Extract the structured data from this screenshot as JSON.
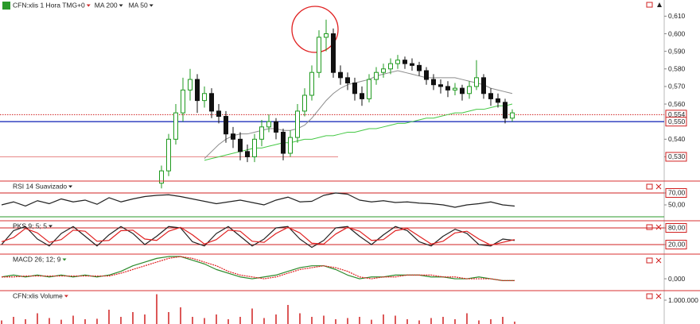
{
  "chart_data": [
    {
      "type": "candlestick",
      "title": "CFN:xlis 1 Hora TMG+0",
      "title_color": "#d02828",
      "open": [
        0.515,
        0.522,
        0.54,
        0.555,
        0.568,
        0.574,
        0.562,
        0.566,
        0.556,
        0.553,
        0.543,
        0.54,
        0.533,
        0.53,
        0.54,
        0.547,
        0.55,
        0.544,
        0.532,
        0.541,
        0.556,
        0.565,
        0.578,
        0.598,
        0.6,
        0.578,
        0.575,
        0.572,
        0.566,
        0.563,
        0.574,
        0.578,
        0.58,
        0.583,
        0.585,
        0.583,
        0.582,
        0.579,
        0.574,
        0.571,
        0.57,
        0.568,
        0.569,
        0.566,
        0.57,
        0.575,
        0.566,
        0.563,
        0.561,
        0.552
      ],
      "high": [
        0.525,
        0.543,
        0.56,
        0.575,
        0.58,
        0.577,
        0.57,
        0.569,
        0.56,
        0.556,
        0.547,
        0.544,
        0.537,
        0.543,
        0.551,
        0.554,
        0.552,
        0.546,
        0.545,
        0.56,
        0.569,
        0.582,
        0.602,
        0.608,
        0.603,
        0.582,
        0.578,
        0.575,
        0.57,
        0.577,
        0.581,
        0.583,
        0.586,
        0.588,
        0.587,
        0.586,
        0.584,
        0.581,
        0.577,
        0.574,
        0.573,
        0.572,
        0.571,
        0.573,
        0.585,
        0.577,
        0.569,
        0.566,
        0.563,
        0.557
      ],
      "low": [
        0.512,
        0.519,
        0.537,
        0.55,
        0.562,
        0.555,
        0.558,
        0.552,
        0.549,
        0.538,
        0.535,
        0.528,
        0.527,
        0.527,
        0.536,
        0.544,
        0.54,
        0.528,
        0.53,
        0.538,
        0.553,
        0.562,
        0.575,
        0.59,
        0.575,
        0.571,
        0.568,
        0.562,
        0.559,
        0.561,
        0.571,
        0.575,
        0.577,
        0.58,
        0.58,
        0.579,
        0.576,
        0.571,
        0.568,
        0.566,
        0.564,
        0.565,
        0.562,
        0.563,
        0.568,
        0.563,
        0.559,
        0.558,
        0.549,
        0.55
      ],
      "close": [
        0.522,
        0.54,
        0.555,
        0.568,
        0.574,
        0.562,
        0.566,
        0.556,
        0.553,
        0.543,
        0.54,
        0.533,
        0.53,
        0.54,
        0.547,
        0.55,
        0.544,
        0.532,
        0.541,
        0.556,
        0.565,
        0.578,
        0.598,
        0.6,
        0.578,
        0.575,
        0.572,
        0.566,
        0.563,
        0.574,
        0.578,
        0.58,
        0.583,
        0.585,
        0.583,
        0.582,
        0.579,
        0.574,
        0.571,
        0.57,
        0.568,
        0.569,
        0.566,
        0.57,
        0.575,
        0.566,
        0.563,
        0.561,
        0.552,
        0.555
      ],
      "up_color": "#1f9a1f",
      "down_color": "#111111",
      "series": [
        {
          "name": "MA 200",
          "color": "#45c845",
          "values": [
            null,
            null,
            null,
            null,
            null,
            null,
            0.528,
            0.529,
            0.53,
            0.531,
            0.532,
            0.533,
            0.534,
            0.535,
            0.535,
            0.536,
            0.537,
            0.538,
            0.538,
            0.539,
            0.54,
            0.54,
            0.541,
            0.542,
            0.542,
            0.543,
            0.544,
            0.544,
            0.545,
            0.546,
            0.546,
            0.547,
            0.548,
            0.549,
            0.549,
            0.55,
            0.551,
            0.552,
            0.552,
            0.553,
            0.554,
            0.555,
            0.555,
            0.556,
            0.557,
            0.557,
            0.558,
            0.559,
            0.559,
            0.56
          ]
        },
        {
          "name": "MA 50",
          "color": "#8c8c8c",
          "values": [
            null,
            null,
            null,
            null,
            null,
            null,
            0.529,
            0.533,
            0.537,
            0.54,
            0.542,
            0.543,
            0.543,
            0.544,
            0.545,
            0.546,
            0.546,
            0.545,
            0.545,
            0.546,
            0.548,
            0.552,
            0.557,
            0.562,
            0.566,
            0.569,
            0.571,
            0.572,
            0.573,
            0.574,
            0.576,
            0.577,
            0.578,
            0.579,
            0.578,
            0.577,
            0.576,
            0.575,
            0.575,
            0.575,
            0.575,
            0.575,
            0.574,
            0.573,
            0.572,
            0.571,
            0.569,
            0.568,
            0.567,
            0.566
          ]
        }
      ],
      "ylim": [
        0.5162,
        0.6192
      ],
      "yticks": [
        {
          "value": 0.61,
          "label": "0,610"
        },
        {
          "value": 0.6,
          "label": "0,600"
        },
        {
          "value": 0.59,
          "label": "0,590"
        },
        {
          "value": 0.58,
          "label": "0,580"
        },
        {
          "value": 0.57,
          "label": "0,570"
        },
        {
          "value": 0.56,
          "label": "0,560"
        },
        {
          "value": 0.54,
          "label": "0,540"
        },
        {
          "value": 0.53,
          "label": "0,530"
        }
      ],
      "levels": [
        {
          "value": 0.554,
          "label": "0,554",
          "color": "#d02020",
          "style": "dotted"
        },
        {
          "value": 0.55,
          "label": "0,550",
          "color": "#2233bb",
          "style": "solid"
        },
        {
          "value": 0.53,
          "color": "#e88888",
          "style": "solid"
        }
      ]
    },
    {
      "type": "line",
      "title": "RSI 14 Suavizado",
      "title_color": "#222222",
      "series": [
        {
          "color": "#222222",
          "values": [
            50,
            55,
            48,
            57,
            52,
            60,
            55,
            58,
            51,
            62,
            55,
            60,
            64,
            66,
            67,
            64,
            60,
            56,
            52,
            55,
            58,
            54,
            50,
            58,
            63,
            55,
            56,
            66,
            70,
            68,
            58,
            55,
            57,
            54,
            55,
            53,
            52,
            50,
            46,
            50,
            52,
            55,
            50,
            48
          ]
        }
      ],
      "ylim": [
        23.3,
        90
      ],
      "yticks": [
        {
          "value": 70,
          "label": "70,00"
        },
        {
          "value": 50,
          "label": "50,00"
        }
      ],
      "levels": [
        {
          "value": 70,
          "color": "#d02020"
        },
        {
          "value": 30,
          "color": "#2a9a2a"
        }
      ]
    },
    {
      "type": "line",
      "title": "PKS 9; 5; 5",
      "title_color": "#222222",
      "series": [
        {
          "color": "#222222",
          "values": [
            20,
            70,
            85,
            40,
            15,
            60,
            85,
            50,
            15,
            55,
            85,
            60,
            20,
            50,
            85,
            80,
            30,
            15,
            60,
            85,
            50,
            15,
            40,
            80,
            85,
            40,
            10,
            35,
            80,
            85,
            50,
            20,
            55,
            85,
            70,
            30,
            15,
            50,
            75,
            60,
            20,
            15,
            40,
            35
          ]
        },
        {
          "color": "#e02020",
          "values": [
            30,
            45,
            78,
            62,
            28,
            38,
            72,
            68,
            32,
            35,
            70,
            72,
            40,
            35,
            68,
            82,
            55,
            22,
            38,
            72,
            68,
            32,
            28,
            60,
            82,
            62,
            25,
            22,
            58,
            82,
            68,
            35,
            38,
            70,
            78,
            50,
            22,
            32,
            62,
            68,
            40,
            18,
            28,
            38
          ]
        }
      ],
      "ylim": [
        -14.3,
        105.7
      ],
      "yticks": [
        {
          "value": 80,
          "label": "80,00"
        },
        {
          "value": 20,
          "label": "20,00"
        }
      ],
      "levels": [
        {
          "value": 80,
          "color": "#d02020"
        },
        {
          "value": 20,
          "color": "#d02020"
        }
      ]
    },
    {
      "type": "line",
      "title": "MACD 26; 12; 9",
      "title_color": "#2a8a2a",
      "series": [
        {
          "color": "#2a8a2a",
          "values": [
            0.001,
            0.002,
            0.001,
            0.002,
            0.001,
            0.002,
            0.001,
            0.002,
            0.001,
            0.002,
            0.004,
            0.007,
            0.009,
            0.011,
            0.012,
            0.012,
            0.01,
            0.008,
            0.005,
            0.003,
            0.001,
            0.0,
            0.001,
            0.002,
            0.004,
            0.006,
            0.007,
            0.007,
            0.005,
            0.002,
            0.0,
            0.001,
            0.001,
            0.002,
            0.002,
            0.002,
            0.001,
            0.001,
            0.0,
            0.0,
            0.001,
            0.0,
            -0.001,
            -0.001
          ]
        },
        {
          "color": "#e02020",
          "dashed": true,
          "values": [
            0.001,
            0.001,
            0.0015,
            0.0015,
            0.0015,
            0.0015,
            0.0015,
            0.0015,
            0.0015,
            0.0015,
            0.003,
            0.005,
            0.007,
            0.009,
            0.011,
            0.012,
            0.011,
            0.009,
            0.007,
            0.004,
            0.002,
            0.001,
            0.0,
            0.001,
            0.003,
            0.005,
            0.006,
            0.007,
            0.006,
            0.004,
            0.001,
            0.0,
            0.001,
            0.001,
            0.002,
            0.002,
            0.002,
            0.001,
            0.001,
            0.0,
            0.0,
            0.0,
            -0.001,
            -0.001
          ]
        }
      ],
      "ylim": [
        -0.0064,
        0.0133
      ],
      "yticks": [
        {
          "value": 0,
          "label": "0,000"
        }
      ],
      "levels": []
    },
    {
      "type": "bar",
      "title": "CFN:xlis Volume",
      "title_color": "#d02828",
      "color": "#d02020",
      "values": [
        150000,
        300000,
        200000,
        450000,
        250000,
        180000,
        350000,
        200000,
        220000,
        600000,
        300000,
        500000,
        400000,
        1250000,
        500000,
        700000,
        300000,
        250000,
        400000,
        200000,
        300000,
        650000,
        250000,
        400000,
        800000,
        450000,
        300000,
        350000,
        200000,
        250000,
        300000,
        180000,
        400000,
        350000,
        200000,
        150000,
        250000,
        300000,
        200000,
        450000,
        150000,
        200000,
        300000,
        100000
      ],
      "ylim": [
        0,
        1400000
      ],
      "yticks": [
        {
          "value": 1000000,
          "label": "1.000.000"
        }
      ],
      "levels": []
    }
  ]
}
